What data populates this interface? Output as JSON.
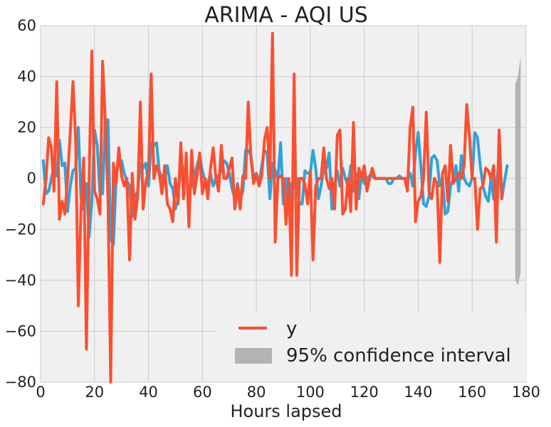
{
  "chart_data": {
    "type": "line",
    "title": "ARIMA - AQI US",
    "xlabel": "Hours lapsed",
    "ylabel": "",
    "xlim": [
      0,
      180
    ],
    "ylim": [
      -80,
      60
    ],
    "xticks": [
      0,
      20,
      40,
      60,
      80,
      100,
      120,
      140,
      160,
      180
    ],
    "yticks": [
      60,
      40,
      20,
      0,
      -20,
      -40,
      -60,
      -80
    ],
    "grid": true,
    "legend_placement": "lower-right",
    "series": [
      {
        "name": "y",
        "color": "#fc4f30",
        "values": [
          -10,
          0,
          16,
          12,
          -5,
          38,
          -16,
          -9,
          -14,
          0,
          18,
          38,
          15,
          -50,
          -12,
          8,
          -67,
          0,
          50,
          -5,
          -8,
          -14,
          46,
          23,
          -8,
          -80,
          6,
          -2,
          12,
          1,
          -3,
          0,
          -32,
          2,
          -16,
          -7,
          30,
          -12,
          -1,
          2,
          41,
          0,
          5,
          2,
          -6,
          5,
          -10,
          -12,
          -17,
          0,
          -10,
          14,
          -8,
          10,
          -19,
          11,
          -6,
          1,
          10,
          -6,
          0,
          -8,
          4,
          12,
          0,
          -5,
          13,
          0,
          0,
          4,
          8,
          -12,
          -3,
          -12,
          1,
          0,
          30,
          8,
          -2,
          2,
          -3,
          1,
          15,
          20,
          0,
          57,
          -25,
          0,
          1,
          0,
          -18,
          0,
          -38,
          41,
          -38,
          0,
          0,
          -2,
          -10,
          3,
          -32,
          -3,
          0,
          0,
          12,
          0,
          -4,
          0,
          -12,
          17,
          19,
          -14,
          -12,
          0,
          -13,
          22,
          -12,
          4,
          0,
          5,
          -5,
          0,
          4,
          0,
          0,
          0,
          0,
          0,
          0,
          0,
          0,
          0,
          0,
          0,
          0,
          -5,
          20,
          28,
          -17,
          -9,
          -7,
          0,
          26,
          -5,
          -8,
          0,
          -2,
          -33,
          2,
          5,
          -9,
          13,
          -2,
          0,
          2,
          0,
          5,
          29,
          17,
          0,
          0,
          -20,
          -4,
          -3,
          4,
          3,
          0,
          5,
          -25,
          19,
          -8
        ]
      },
      {
        "name": "",
        "color": "#30a2da",
        "values": [
          7,
          -6,
          -5,
          0,
          5,
          1,
          15,
          5,
          6,
          -13,
          -3,
          3,
          4,
          20,
          -8,
          -12,
          -2,
          -23,
          -9,
          19,
          13,
          -6,
          -6,
          23,
          23,
          -24,
          -26,
          0,
          7,
          7,
          2,
          -1,
          -3,
          -15,
          -7,
          -5,
          6,
          4,
          6,
          -3,
          14,
          13,
          14,
          3,
          0,
          0,
          5,
          -2,
          -4,
          -12,
          -8,
          7,
          3,
          0,
          -5,
          -3,
          1,
          5,
          9,
          3,
          -1,
          -2,
          2,
          -3,
          0,
          1,
          3,
          7,
          6,
          2,
          -4,
          -8,
          -2,
          -8,
          -5,
          11,
          11,
          9,
          0,
          2,
          -2,
          5,
          11,
          10,
          -8,
          6,
          3,
          0,
          14,
          -10,
          0,
          -14,
          -2,
          -2,
          0,
          -10,
          -10,
          3,
          2,
          2,
          11,
          4,
          -8,
          -3,
          4,
          4,
          10,
          -12,
          -3,
          3,
          -3,
          4,
          0,
          -3,
          5,
          -5,
          2,
          -8,
          2,
          -2,
          0,
          1,
          1,
          0,
          0,
          0,
          0,
          0,
          -2,
          -2,
          0,
          0,
          1,
          0,
          0,
          0,
          2,
          -3,
          10,
          18,
          5,
          -10,
          -11,
          -7,
          8,
          9,
          7,
          -3,
          0,
          -14,
          -13,
          -3,
          0,
          5,
          -5,
          9,
          0,
          -2,
          -3,
          0,
          18,
          16,
          5,
          -3,
          -7,
          -9,
          0,
          -8,
          -3,
          8,
          -8,
          -1,
          5
        ]
      },
      {
        "name": "95% confidence interval",
        "color": "#b3b3b3",
        "x": [
          176,
          177,
          178
        ],
        "lower": [
          -40,
          -42,
          -37
        ],
        "upper": [
          37,
          40,
          48
        ]
      }
    ]
  }
}
